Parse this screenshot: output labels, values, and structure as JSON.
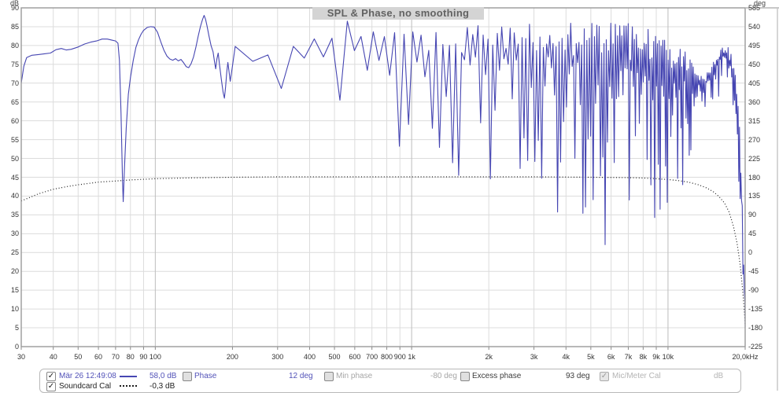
{
  "colors": {
    "spl_trace": "#4646b2",
    "cal_trace": "#1c1c1c",
    "grid": "#dcdcdc",
    "grid_major": "#bdbdbd",
    "plot_border": "#9a9a9a",
    "title_bg": "#d4d4d4",
    "title_text": "#626262"
  },
  "chart_data": {
    "type": "line",
    "title": "SPL & Phase, no smoothing",
    "x_axis": {
      "scale": "log",
      "min_hz": 30,
      "max_hz": 20000,
      "ticks": [
        [
          30,
          "30"
        ],
        [
          40,
          "40"
        ],
        [
          50,
          "50"
        ],
        [
          60,
          "60"
        ],
        [
          70,
          "70"
        ],
        [
          80,
          "80"
        ],
        [
          90,
          "90"
        ],
        [
          100,
          "100"
        ],
        [
          200,
          "200"
        ],
        [
          300,
          "300"
        ],
        [
          400,
          "400"
        ],
        [
          500,
          "500"
        ],
        [
          600,
          "600"
        ],
        [
          700,
          "700"
        ],
        [
          800,
          "800"
        ],
        [
          900,
          "900"
        ],
        [
          1000,
          "1k"
        ],
        [
          2000,
          "2k"
        ],
        [
          3000,
          "3k"
        ],
        [
          4000,
          "4k"
        ],
        [
          5000,
          "5k"
        ],
        [
          6000,
          "6k"
        ],
        [
          7000,
          "7k"
        ],
        [
          8000,
          "8k"
        ],
        [
          9000,
          "9k"
        ],
        [
          10000,
          "10k"
        ],
        [
          20000,
          "20,0kHz"
        ]
      ],
      "major_ticks_hz": [
        100,
        1000,
        10000
      ]
    },
    "y_left": {
      "unit": "dB",
      "min": 0,
      "max": 90,
      "step": 5,
      "ticks": [
        "90",
        "85",
        "80",
        "75",
        "70",
        "65",
        "60",
        "55",
        "50",
        "45",
        "40",
        "35",
        "30",
        "25",
        "20",
        "15",
        "10",
        "5",
        "0"
      ]
    },
    "y_right": {
      "unit": "deg",
      "min": -225,
      "max": 585,
      "step": 45,
      "ticks": [
        "585",
        "540",
        "495",
        "450",
        "405",
        "360",
        "315",
        "270",
        "225",
        "180",
        "135",
        "90",
        "45",
        "0",
        "-45",
        "-90",
        "-135",
        "-180",
        "-225"
      ]
    },
    "grid": true,
    "series": [
      {
        "name": "Mär 26 12:49:08",
        "style": "solid",
        "unit": "dB",
        "points_lf": [
          [
            30,
            70
          ],
          [
            30.7,
            74.5
          ],
          [
            31.5,
            76.8
          ],
          [
            33,
            77.4
          ],
          [
            35,
            77.6
          ],
          [
            37,
            77.8
          ],
          [
            39,
            78
          ],
          [
            41,
            78.9
          ],
          [
            43,
            79.2
          ],
          [
            45,
            78.8
          ],
          [
            47,
            79
          ],
          [
            50,
            79.6
          ],
          [
            53,
            80.4
          ],
          [
            56,
            80.9
          ],
          [
            59,
            81.2
          ],
          [
            62,
            81.7
          ],
          [
            65,
            81.7
          ],
          [
            68,
            81.4
          ],
          [
            70,
            81.2
          ],
          [
            71.5,
            80.6
          ],
          [
            72.5,
            76
          ],
          [
            73.5,
            62
          ],
          [
            74.5,
            44
          ],
          [
            75,
            38.5
          ],
          [
            75.8,
            47
          ],
          [
            77,
            58
          ],
          [
            78.5,
            67
          ],
          [
            80,
            71.5
          ],
          [
            82,
            76
          ],
          [
            84,
            79.5
          ],
          [
            86,
            81.5
          ],
          [
            88,
            83
          ],
          [
            90,
            84
          ],
          [
            93,
            84.8
          ],
          [
            96,
            85
          ],
          [
            99,
            84.9
          ],
          [
            102,
            83.5
          ],
          [
            105,
            81
          ],
          [
            108,
            78.8
          ],
          [
            111,
            77.2
          ],
          [
            114,
            76.4
          ],
          [
            117,
            76.1
          ],
          [
            120,
            76.5
          ],
          [
            123,
            75.9
          ],
          [
            126,
            76.3
          ],
          [
            129,
            75.4
          ],
          [
            132,
            74.4
          ],
          [
            135,
            74.1
          ],
          [
            138,
            75.2
          ],
          [
            141,
            77
          ],
          [
            144,
            79.5
          ],
          [
            147,
            82.5
          ],
          [
            150,
            85
          ],
          [
            153,
            87
          ],
          [
            155,
            88
          ],
          [
            157,
            87
          ],
          [
            159,
            85.3
          ],
          [
            162,
            82.5
          ],
          [
            165,
            80
          ],
          [
            168,
            78.3
          ],
          [
            170,
            76
          ],
          [
            172,
            73.8
          ],
          [
            174,
            76.5
          ],
          [
            176,
            78
          ],
          [
            178,
            75
          ],
          [
            181,
            71
          ],
          [
            184,
            67.5
          ],
          [
            186,
            66
          ],
          [
            188,
            69
          ],
          [
            190,
            73
          ],
          [
            192,
            75.5
          ],
          [
            194,
            73
          ],
          [
            196,
            70.5
          ],
          [
            198,
            72.5
          ],
          [
            200,
            74.5
          ]
        ],
        "envelope_hf": [
          [
            200,
            79,
            68
          ],
          [
            220,
            82,
            62
          ],
          [
            240,
            80,
            61
          ],
          [
            260,
            83,
            60
          ],
          [
            280,
            80,
            63
          ],
          [
            300,
            81,
            58
          ],
          [
            330,
            80,
            60
          ],
          [
            360,
            83,
            64
          ],
          [
            400,
            84,
            59
          ],
          [
            440,
            84,
            55
          ],
          [
            480,
            85,
            53
          ],
          [
            520,
            86,
            50
          ],
          [
            560,
            88,
            56
          ],
          [
            600,
            87,
            50
          ],
          [
            650,
            87,
            55
          ],
          [
            700,
            85,
            50
          ],
          [
            750,
            84,
            57
          ],
          [
            800,
            84,
            51
          ],
          [
            850,
            85,
            56
          ],
          [
            900,
            85,
            53
          ],
          [
            950,
            84,
            55
          ],
          [
            1000,
            85,
            49
          ],
          [
            1080,
            84,
            44
          ],
          [
            1150,
            83,
            36
          ],
          [
            1250,
            84,
            48
          ],
          [
            1350,
            84,
            46
          ],
          [
            1450,
            85,
            49
          ],
          [
            1550,
            85,
            36
          ],
          [
            1650,
            86,
            48
          ],
          [
            1800,
            86,
            44
          ],
          [
            2000,
            85,
            45
          ],
          [
            2200,
            86,
            42
          ],
          [
            2400,
            86,
            46
          ],
          [
            2600,
            86,
            40
          ],
          [
            2800,
            87,
            44
          ],
          [
            3000,
            86,
            40
          ],
          [
            3200,
            87,
            45
          ],
          [
            3500,
            87,
            40
          ],
          [
            3800,
            86,
            34
          ],
          [
            4100,
            86,
            30
          ],
          [
            4400,
            86,
            38
          ],
          [
            4700,
            87,
            35
          ],
          [
            5000,
            87,
            44
          ],
          [
            5300,
            87,
            30
          ],
          [
            5600,
            88,
            24
          ],
          [
            6000,
            88,
            38
          ],
          [
            6400,
            87,
            34
          ],
          [
            6800,
            87,
            28
          ],
          [
            7200,
            87,
            25
          ],
          [
            7600,
            86,
            40
          ],
          [
            8000,
            86,
            36
          ],
          [
            8400,
            85,
            28
          ],
          [
            8800,
            85,
            24
          ],
          [
            9200,
            85,
            35
          ],
          [
            9600,
            84,
            40
          ],
          [
            10000,
            83,
            38
          ],
          [
            10500,
            82,
            30
          ],
          [
            11000,
            80,
            34
          ],
          [
            11500,
            79,
            45
          ],
          [
            12000,
            78,
            50
          ],
          [
            12500,
            76,
            54
          ],
          [
            13000,
            74,
            58
          ],
          [
            13500,
            72,
            60
          ],
          [
            14000,
            72,
            62
          ],
          [
            14500,
            74,
            63
          ],
          [
            15000,
            76,
            64
          ],
          [
            15500,
            78,
            66
          ],
          [
            16000,
            79,
            67
          ],
          [
            16500,
            80,
            68
          ],
          [
            17000,
            80,
            66
          ],
          [
            17400,
            79,
            62
          ],
          [
            17800,
            77,
            57
          ],
          [
            18200,
            74,
            50
          ],
          [
            18600,
            68,
            42
          ],
          [
            19000,
            60,
            30
          ],
          [
            19300,
            48,
            20
          ],
          [
            19600,
            32,
            10
          ],
          [
            19800,
            20,
            6
          ],
          [
            20000,
            12,
            4
          ]
        ],
        "noise_seed": 7
      },
      {
        "name": "Soundcard Cal",
        "style": "dotted",
        "unit": "dB",
        "points": [
          [
            30,
            38.7
          ],
          [
            35,
            40.6
          ],
          [
            40,
            41.8
          ],
          [
            45,
            42.5
          ],
          [
            50,
            43.0
          ],
          [
            60,
            43.7
          ],
          [
            70,
            44.0
          ],
          [
            80,
            44.3
          ],
          [
            100,
            44.6
          ],
          [
            130,
            44.8
          ],
          [
            160,
            44.9
          ],
          [
            200,
            45.0
          ],
          [
            300,
            45.1
          ],
          [
            500,
            45.1
          ],
          [
            1000,
            45.1
          ],
          [
            2000,
            45.1
          ],
          [
            3000,
            45.1
          ],
          [
            5000,
            45.0
          ],
          [
            7000,
            44.9
          ],
          [
            8000,
            44.8
          ],
          [
            9000,
            44.6
          ],
          [
            10000,
            44.4
          ],
          [
            11000,
            44.1
          ],
          [
            12000,
            43.7
          ],
          [
            13000,
            43.1
          ],
          [
            14000,
            42.3
          ],
          [
            15000,
            41.2
          ],
          [
            15800,
            39.9
          ],
          [
            16600,
            38.2
          ],
          [
            17300,
            35.8
          ],
          [
            18000,
            32.0
          ],
          [
            18600,
            27.5
          ],
          [
            19100,
            22.0
          ],
          [
            19500,
            16.0
          ],
          [
            19800,
            10.5
          ],
          [
            20000,
            6.0
          ]
        ]
      }
    ]
  },
  "legend": {
    "row1": {
      "checked": true,
      "name": "Mär 26 12:49:08",
      "level": "58,0 dB",
      "phase_label": "Phase",
      "phase_value": "12 deg",
      "min_phase_label": "Min phase",
      "min_phase_value": "-80 deg",
      "excess_phase_label": "Excess phase",
      "excess_phase_value": "93 deg",
      "mic_cal_label": "Mic/Meter Cal",
      "mic_cal_unit": "dB"
    },
    "row2": {
      "checked": true,
      "name": "Soundcard Cal",
      "level": "-0,3 dB"
    }
  }
}
